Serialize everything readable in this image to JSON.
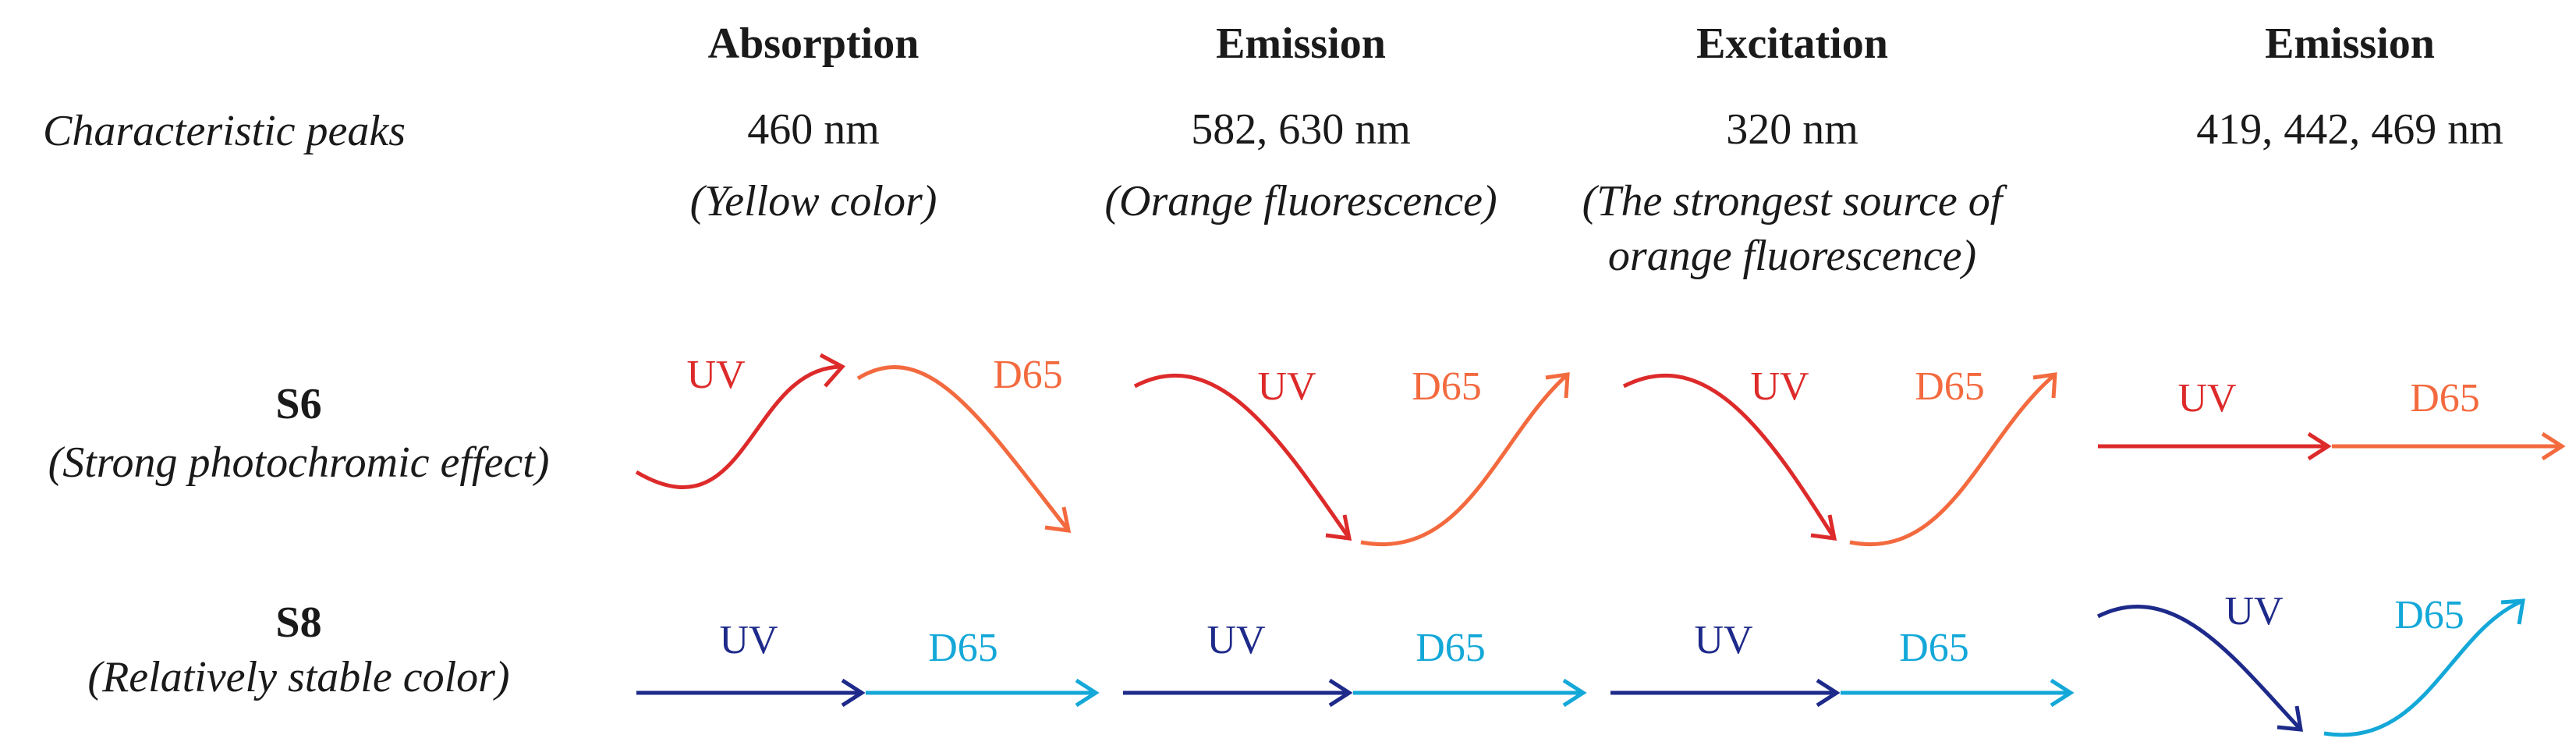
{
  "colors": {
    "red": "#dd2a2a",
    "orange": "#f36a3f",
    "navy": "#1e2a8a",
    "cyan": "#14a8d8"
  },
  "columns": [
    {
      "heading": "Absorption",
      "peak": "460 nm",
      "note": "(Yellow color)"
    },
    {
      "heading": "Emission",
      "peak": "582, 630 nm",
      "note": "(Orange fluorescence)"
    },
    {
      "heading": "Excitation",
      "peak": "320 nm",
      "note_line1": "(The strongest source of",
      "note_line2": "orange fluorescence)"
    },
    {
      "heading": "Emission",
      "peak": "419, 442, 469 nm"
    }
  ],
  "row_header": "Characteristic peaks",
  "samples": [
    {
      "name": "S6",
      "desc": "(Strong photochromic effect)"
    },
    {
      "name": "S8",
      "desc": "(Relatively stable color)"
    }
  ],
  "arrow_labels": {
    "uv": "UV",
    "d65": "D65"
  }
}
